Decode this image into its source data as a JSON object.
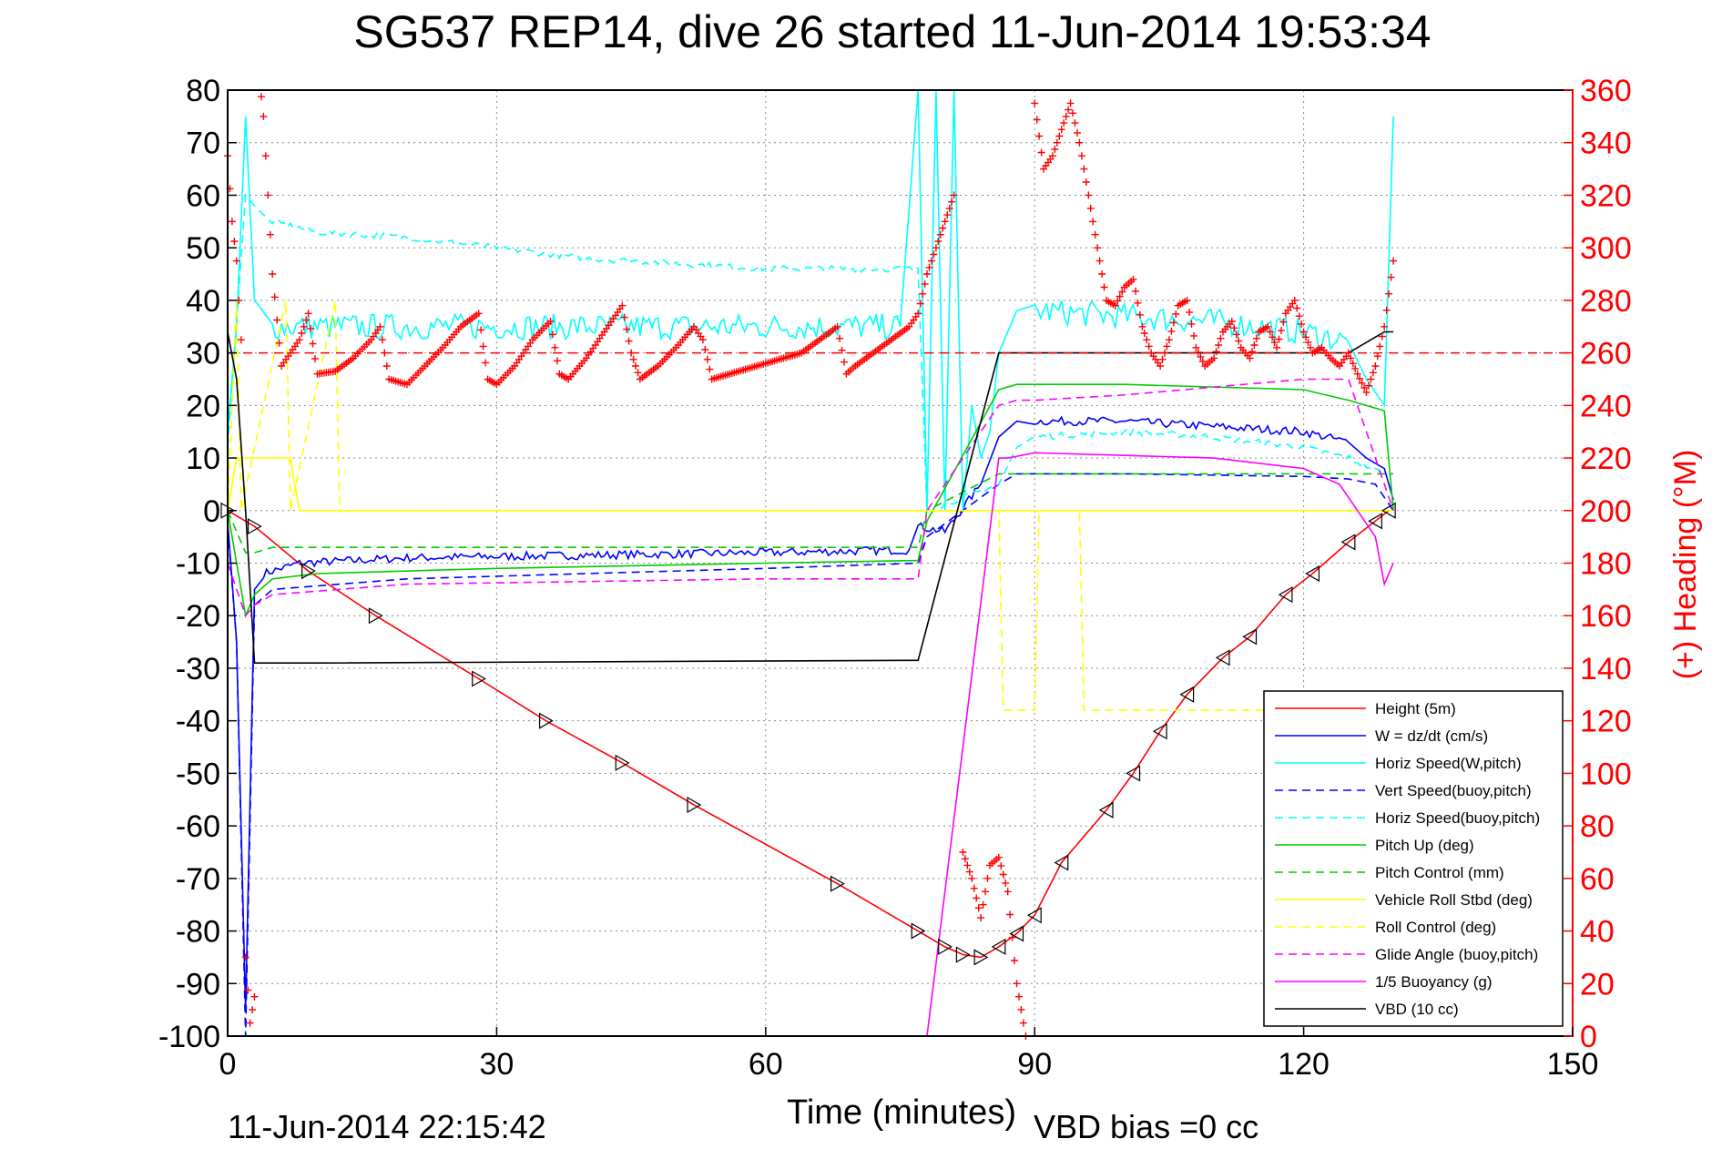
{
  "chart_data": {
    "type": "line",
    "title": "SG537 REP14, dive 26 started 11-Jun-2014 19:53:34",
    "xlabel": "Time (minutes)",
    "ylabel_right": "(+) Heading (°M)",
    "footer_left": "11-Jun-2014 22:15:42",
    "footer_right": "VBD bias =0 cc",
    "xlim": [
      0,
      150
    ],
    "ylim": [
      -100,
      80
    ],
    "y2lim": [
      0,
      360
    ],
    "x_ticks": [
      "0",
      "30",
      "60",
      "90",
      "120",
      "150"
    ],
    "y_ticks": [
      "80",
      "70",
      "60",
      "50",
      "40",
      "30",
      "20",
      "10",
      "0",
      "-10",
      "-20",
      "-30",
      "-40",
      "-50",
      "-60",
      "-70",
      "-80",
      "-90",
      "-100"
    ],
    "y2_ticks": [
      "360",
      "340",
      "320",
      "300",
      "280",
      "260",
      "240",
      "220",
      "200",
      "180",
      "160",
      "140",
      "120",
      "100",
      "80",
      "60",
      "40",
      "20",
      "0"
    ],
    "grid": true,
    "legend_position": "bottom-right",
    "series": [
      {
        "name": "Height (5m)",
        "color": "#ff0000",
        "style": "solid",
        "x": [
          0,
          3,
          9,
          16.5,
          28,
          35.5,
          44,
          52,
          68,
          77,
          80,
          82,
          84,
          86,
          88,
          90,
          93,
          98,
          101,
          104,
          107,
          111,
          114,
          118,
          121,
          125,
          128,
          129.5
        ],
        "y": [
          0,
          -3,
          -11.5,
          -20,
          -32,
          -40,
          -48,
          -56,
          -71,
          -80,
          -83,
          -84.5,
          -85,
          -83,
          -80.5,
          -77,
          -67,
          -57,
          -50,
          -42,
          -35,
          -28,
          -24,
          -16,
          -12,
          -6,
          -2,
          0
        ]
      },
      {
        "name": "W = dz/dt (cm/s)",
        "color": "#0000ff",
        "style": "solid",
        "x": [
          0,
          1,
          2,
          3,
          4,
          8,
          20,
          40,
          60,
          76,
          77,
          80,
          84,
          86,
          88,
          90,
          100,
          110,
          120,
          125,
          127,
          129,
          130
        ],
        "y": [
          -2,
          -25,
          -95,
          -15,
          -12,
          -10,
          -9,
          -8.5,
          -8,
          -7.5,
          -3,
          -4,
          5,
          14,
          17,
          17,
          17,
          16,
          15,
          13,
          10,
          8,
          2
        ]
      },
      {
        "name": "Horiz Speed(W,pitch)",
        "color": "#00ffff",
        "style": "solid",
        "x": [
          0,
          1,
          2,
          3,
          5,
          10,
          20,
          40,
          60,
          75,
          77,
          78,
          79,
          80,
          81,
          82,
          83,
          84,
          85,
          86,
          88,
          90,
          100,
          110,
          120,
          125,
          127,
          129,
          130
        ],
        "y": [
          15,
          35,
          75,
          40,
          35,
          35,
          35,
          35,
          35,
          35,
          80,
          0,
          80,
          0,
          80,
          0,
          20,
          10,
          15,
          30,
          38,
          38,
          37,
          36,
          34,
          32,
          25,
          20,
          75
        ]
      },
      {
        "name": "Vert Speed(buoy,pitch)",
        "color": "#0000ff",
        "style": "dashed",
        "x": [
          0,
          1,
          2,
          3,
          5,
          20,
          40,
          60,
          77,
          78,
          86,
          88,
          90,
          100,
          120,
          125,
          128,
          130
        ],
        "y": [
          -3,
          -25,
          -100,
          -18,
          -15,
          -13,
          -12,
          -11,
          -10,
          -5,
          5,
          7,
          7,
          7,
          6.5,
          6,
          5,
          0
        ]
      },
      {
        "name": "Horiz Speed(buoy,pitch)",
        "color": "#00ffff",
        "style": "dashed",
        "x": [
          0,
          2,
          3,
          5,
          10,
          20,
          40,
          60,
          77,
          78,
          86,
          88,
          90,
          100,
          110,
          120,
          125,
          129
        ],
        "y": [
          12,
          60,
          58,
          55,
          53,
          52,
          48,
          46,
          46,
          0,
          5,
          12,
          14,
          15,
          14,
          12,
          10,
          7
        ]
      },
      {
        "name": "Pitch Up (deg)",
        "color": "#00cc00",
        "style": "solid",
        "x": [
          0,
          2,
          3,
          5,
          10,
          30,
          60,
          77,
          78,
          86,
          88,
          90,
          100,
          120,
          125,
          129,
          130
        ],
        "y": [
          0,
          -20,
          -16,
          -13,
          -12,
          -11,
          -10,
          -9.5,
          -2,
          23,
          24,
          24,
          24,
          23,
          21,
          19,
          0
        ]
      },
      {
        "name": "Pitch Control (mm)",
        "color": "#00cc00",
        "style": "dashed",
        "x": [
          0,
          2,
          3,
          5,
          77,
          78,
          86,
          88,
          130
        ],
        "y": [
          0,
          -8,
          -8,
          -7,
          -7,
          0,
          7,
          7,
          7
        ]
      },
      {
        "name": "Vehicle Roll Stbd (deg)",
        "color": "#ffff00",
        "style": "solid",
        "x": [
          0,
          1,
          2,
          7,
          8,
          76,
          77,
          130
        ],
        "y": [
          0,
          10,
          10,
          10,
          0,
          0,
          0,
          0
        ]
      },
      {
        "name": "Roll Control (deg)",
        "color": "#ffff00",
        "style": "dashed",
        "x": [
          0,
          1,
          1.5,
          6.5,
          7,
          12,
          12.5,
          77,
          86,
          86.5,
          90,
          90.5,
          95,
          95.5,
          130
        ],
        "y": [
          0,
          40,
          0,
          40,
          0,
          40,
          0,
          0,
          0,
          -38,
          -38,
          0,
          0,
          -38,
          -38
        ]
      },
      {
        "name": "Glide Angle (buoy,pitch)",
        "color": "#ff00ff",
        "style": "dashed",
        "x": [
          0,
          2,
          3,
          5,
          20,
          40,
          60,
          77,
          78,
          86,
          88,
          90,
          100,
          120,
          125,
          128,
          130
        ],
        "y": [
          -10,
          -20,
          -18,
          -16,
          -14,
          -13.5,
          -13,
          -13,
          0,
          20,
          21,
          21,
          22,
          25,
          25,
          10,
          0
        ]
      },
      {
        "name": "1/5 Buoyancy (g)",
        "color": "#ff00ff",
        "style": "solid",
        "x": [
          77,
          78,
          86,
          87,
          90,
          100,
          110,
          120,
          124,
          126,
          128,
          129,
          130
        ],
        "y": [
          -100,
          -100,
          10,
          10,
          11,
          10.5,
          10,
          8,
          5,
          0,
          -5,
          -14,
          -10
        ]
      },
      {
        "name": "VBD (10 cc)",
        "color": "#000000",
        "style": "solid",
        "x": [
          0,
          1,
          2,
          3,
          10,
          76,
          77,
          86,
          87,
          90,
          125,
          129,
          130
        ],
        "y": [
          34,
          25,
          0,
          -29,
          -29,
          -28.5,
          -28.5,
          30,
          30,
          30,
          30,
          34,
          34
        ]
      }
    ],
    "heading_series": {
      "name": "(+) Heading (°M)",
      "axis": "right",
      "color": "#ff0000",
      "marker": "+",
      "x": [
        0,
        0.5,
        1,
        1.5,
        2,
        2.5,
        3,
        3.5,
        4,
        5,
        6,
        7,
        8,
        9,
        10,
        12,
        14,
        16,
        17,
        18,
        20,
        22,
        24,
        26,
        28,
        29,
        30,
        32,
        34,
        36,
        37,
        38,
        40,
        42,
        44,
        45,
        46,
        48,
        50,
        52,
        53,
        54,
        56,
        58,
        60,
        62,
        64,
        66,
        68,
        69,
        70,
        72,
        74,
        76,
        77,
        78,
        79,
        80,
        81,
        82,
        83,
        84,
        85,
        86,
        87,
        88,
        89,
        90,
        91,
        92,
        93,
        94,
        95,
        96,
        97,
        98,
        99,
        100,
        101,
        102,
        103,
        104,
        105,
        106,
        107,
        108,
        109,
        110,
        111,
        112,
        113,
        114,
        115,
        116,
        117,
        118,
        119,
        120,
        121,
        122,
        123,
        124,
        125,
        126,
        127,
        128,
        129,
        130
      ],
      "y": [
        335,
        310,
        295,
        265,
        30,
        5,
        15,
        365,
        350,
        290,
        255,
        260,
        265,
        275,
        252,
        253,
        258,
        265,
        270,
        250,
        248,
        255,
        262,
        270,
        275,
        250,
        248,
        255,
        265,
        272,
        252,
        250,
        258,
        268,
        278,
        260,
        250,
        255,
        262,
        270,
        265,
        250,
        252,
        254,
        256,
        258,
        260,
        265,
        270,
        252,
        255,
        260,
        265,
        270,
        275,
        290,
        300,
        310,
        320,
        70,
        60,
        45,
        65,
        68,
        55,
        20,
        0,
        355,
        330,
        335,
        345,
        355,
        340,
        320,
        300,
        280,
        278,
        285,
        288,
        270,
        260,
        255,
        265,
        278,
        280,
        262,
        255,
        258,
        268,
        272,
        262,
        258,
        268,
        270,
        262,
        275,
        280,
        268,
        260,
        262,
        258,
        255,
        260,
        252,
        245,
        255,
        270,
        295
      ]
    }
  }
}
